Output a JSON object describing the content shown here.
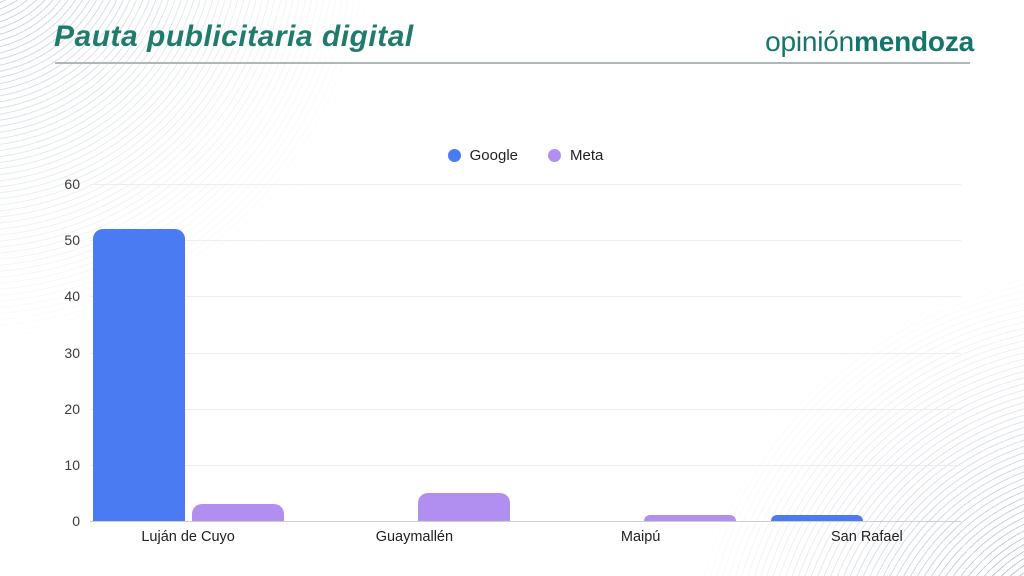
{
  "header": {
    "title": "Pauta publicitaria digital",
    "brand_light": "opinión",
    "brand_bold": "mendoza"
  },
  "colors": {
    "title_teal": "#217b6d",
    "brand_teal": "#15756b",
    "google_blue": "#4b7bf2",
    "meta_purple": "#b18ff0",
    "gridline": "#ededed",
    "axis_baseline": "#cfcfcf"
  },
  "chart_data": {
    "type": "bar",
    "categories": [
      "Luján de Cuyo",
      "Guaymallén",
      "Maipú",
      "San Rafael"
    ],
    "series": [
      {
        "name": "Google",
        "color": "#4b7bf2",
        "values": [
          52,
          0,
          0,
          1
        ]
      },
      {
        "name": "Meta",
        "color": "#b18ff0",
        "values": [
          3,
          5,
          1,
          0
        ]
      }
    ],
    "title": "Pauta publicitaria digital",
    "xlabel": "",
    "ylabel": "",
    "ylim": [
      0,
      60
    ],
    "yticks": [
      0,
      10,
      20,
      30,
      40,
      50,
      60
    ],
    "grid": true,
    "legend_position": "top-center"
  }
}
